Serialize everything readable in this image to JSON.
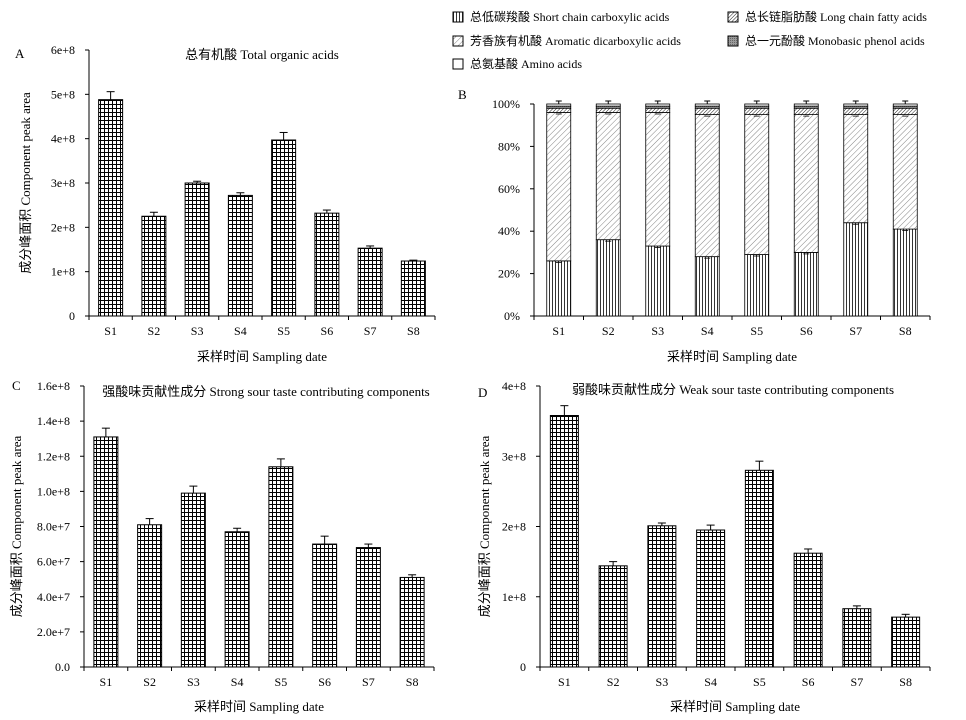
{
  "common": {
    "xlabel": "采样时间 Sampling date",
    "ylabel": "成分峰面积 Component peak area"
  },
  "legend": [
    {
      "label": "总低碳羧酸 Short chain carboxylic acids",
      "pattern": "vlines"
    },
    {
      "label": "总长链脂肪酸 Long chain fatty acids",
      "pattern": "diag-dense"
    },
    {
      "label": "芳香族有机酸 Aromatic dicarboxylic acids",
      "pattern": "diag"
    },
    {
      "label": "总一元酚酸 Monobasic phenol acids",
      "pattern": "gray"
    },
    {
      "label": "总氨基酸 Amino acids",
      "pattern": "empty"
    }
  ],
  "chart_data": [
    {
      "panel": "A",
      "type": "bar",
      "title": "总有机酸 Total organic acids",
      "xlabel": "采样时间 Sampling date",
      "ylabel": "成分峰面积 Component peak area",
      "categories": [
        "S1",
        "S2",
        "S3",
        "S4",
        "S5",
        "S6",
        "S7",
        "S8"
      ],
      "values": [
        488000000.0,
        225000000.0,
        300000000.0,
        272000000.0,
        397000000.0,
        232000000.0,
        153000000.0,
        124000000.0
      ],
      "errors": [
        18000000.0,
        9000000.0,
        4000000.0,
        6000000.0,
        17000000.0,
        7000000.0,
        5000000.0,
        2000000.0
      ],
      "ylim": [
        0,
        600000000.0
      ],
      "yticks": [
        "0",
        "1e+8",
        "2e+8",
        "3e+8",
        "4e+8",
        "5e+8",
        "6e+8"
      ]
    },
    {
      "panel": "B",
      "type": "bar",
      "stacked": true,
      "percent": true,
      "xlabel": "采样时间 Sampling date",
      "categories": [
        "S1",
        "S2",
        "S3",
        "S4",
        "S5",
        "S6",
        "S7",
        "S8"
      ],
      "series": [
        {
          "name": "总低碳羧酸 Short chain carboxylic acids",
          "pattern": "vlines",
          "values": [
            26,
            36,
            33,
            28,
            29,
            30,
            44,
            41
          ]
        },
        {
          "name": "芳香族有机酸 Aromatic dicarboxylic acids",
          "pattern": "diag",
          "values": [
            70,
            60,
            63,
            67,
            66,
            65,
            51,
            54
          ]
        },
        {
          "name": "总长链脂肪酸 Long chain fatty acids",
          "pattern": "diag-dense",
          "values": [
            2,
            2,
            2,
            3,
            3,
            3,
            3,
            3
          ]
        },
        {
          "name": "总一元酚酸 Monobasic phenol acids",
          "pattern": "gray",
          "values": [
            1,
            1,
            1,
            1,
            1,
            1,
            1,
            1
          ]
        },
        {
          "name": "总氨基酸 Amino acids",
          "pattern": "empty",
          "values": [
            1,
            1,
            1,
            1,
            1,
            1,
            1,
            1
          ]
        }
      ],
      "ylim": [
        0,
        100
      ],
      "yticks": [
        "0%",
        "20%",
        "40%",
        "60%",
        "80%",
        "100%"
      ]
    },
    {
      "panel": "C",
      "type": "bar",
      "title": "强酸味贡献性成分 Strong sour taste contributing components",
      "xlabel": "采样时间 Sampling date",
      "ylabel": "成分峰面积 Component peak area",
      "categories": [
        "S1",
        "S2",
        "S3",
        "S4",
        "S5",
        "S6",
        "S7",
        "S8"
      ],
      "values": [
        131000000.0,
        81000000.0,
        99000000.0,
        77000000.0,
        114000000.0,
        70000000.0,
        68000000.0,
        51000000.0
      ],
      "errors": [
        5000000.0,
        3500000.0,
        4000000.0,
        2000000.0,
        4500000.0,
        4500000.0,
        2000000.0,
        1500000.0
      ],
      "ylim": [
        0,
        160000000.0
      ],
      "yticks": [
        "0.0",
        "2.0e+7",
        "4.0e+7",
        "6.0e+7",
        "8.0e+7",
        "1.0e+8",
        "1.2e+8",
        "1.4e+8",
        "1.6e+8"
      ]
    },
    {
      "panel": "D",
      "type": "bar",
      "title": "弱酸味贡献性成分 Weak sour taste contributing components",
      "xlabel": "采样时间 Sampling date",
      "ylabel": "成分峰面积 Component peak area",
      "categories": [
        "S1",
        "S2",
        "S3",
        "S4",
        "S5",
        "S6",
        "S7",
        "S8"
      ],
      "values": [
        358000000.0,
        144000000.0,
        201000000.0,
        195000000.0,
        280000000.0,
        162000000.0,
        83000000.0,
        71000000.0
      ],
      "errors": [
        14000000.0,
        6000000.0,
        4000000.0,
        7000000.0,
        13000000.0,
        6000000.0,
        4000000.0,
        4000000.0
      ],
      "ylim": [
        0,
        400000000.0
      ],
      "yticks": [
        "0",
        "1e+8",
        "2e+8",
        "3e+8",
        "4e+8"
      ]
    }
  ]
}
